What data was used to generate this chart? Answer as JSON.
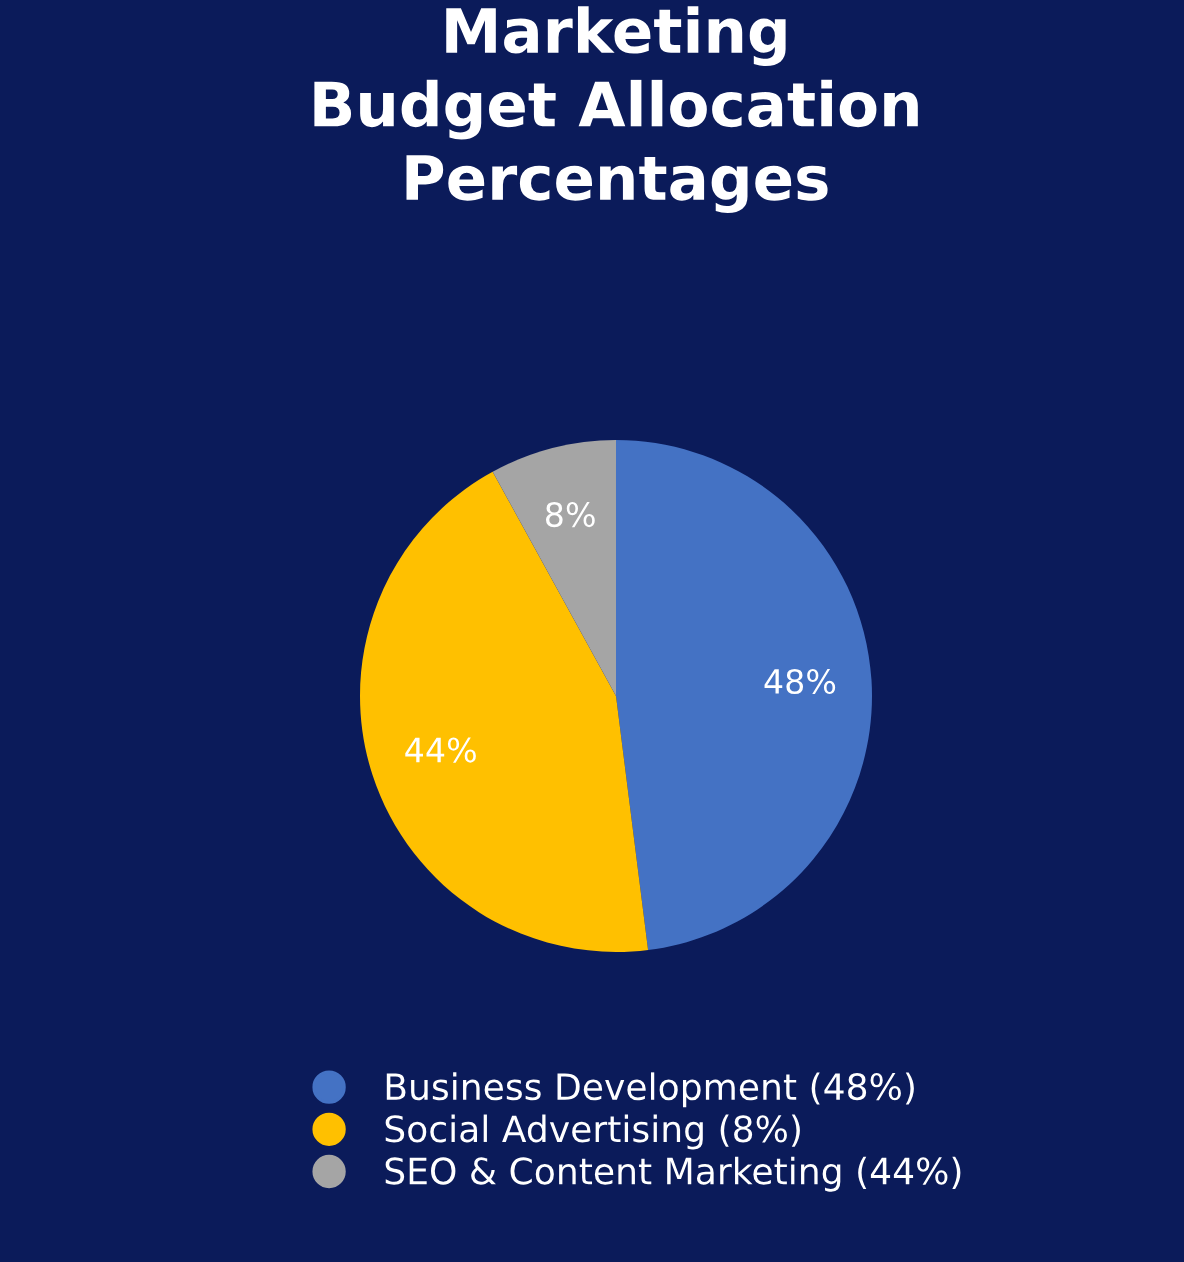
{
  "chart_data": {
    "type": "pie",
    "title": "Marketing\nBudget Allocation\nPercentages",
    "categories": [
      "Business Development (48%)",
      "Social Advertising (8%)",
      "SEO & Content Marketing (44%)"
    ],
    "values": [
      48,
      44,
      8
    ],
    "colors": [
      "#4472c4",
      "#ffc000",
      "#a5a5a5"
    ],
    "value_labels": [
      "48%",
      "44%",
      "8%"
    ],
    "legend": "bottom"
  }
}
